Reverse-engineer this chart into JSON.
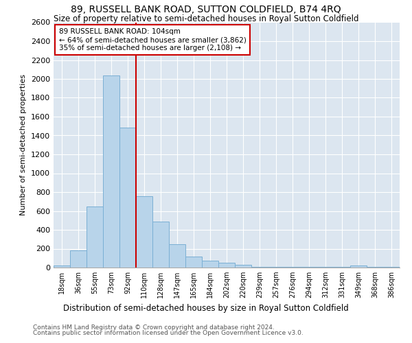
{
  "title": "89, RUSSELL BANK ROAD, SUTTON COLDFIELD, B74 4RQ",
  "subtitle": "Size of property relative to semi-detached houses in Royal Sutton Coldfield",
  "xlabel_bottom": "Distribution of semi-detached houses by size in Royal Sutton Coldfield",
  "ylabel": "Number of semi-detached properties",
  "footnote1": "Contains HM Land Registry data © Crown copyright and database right 2024.",
  "footnote2": "Contains public sector information licensed under the Open Government Licence v3.0.",
  "bar_labels": [
    "18sqm",
    "36sqm",
    "55sqm",
    "73sqm",
    "92sqm",
    "110sqm",
    "128sqm",
    "147sqm",
    "165sqm",
    "184sqm",
    "202sqm",
    "220sqm",
    "239sqm",
    "257sqm",
    "276sqm",
    "294sqm",
    "312sqm",
    "331sqm",
    "349sqm",
    "368sqm",
    "386sqm"
  ],
  "bar_values": [
    20,
    180,
    650,
    2040,
    1480,
    760,
    490,
    245,
    120,
    70,
    50,
    30,
    10,
    10,
    5,
    5,
    5,
    5,
    20,
    5,
    5
  ],
  "bar_color": "#b8d4ea",
  "bar_edge_color": "#7aafd4",
  "property_line_label": "89 RUSSELL BANK ROAD: 104sqm",
  "annotation_smaller": "← 64% of semi-detached houses are smaller (3,862)",
  "annotation_larger": "35% of semi-detached houses are larger (2,108) →",
  "vline_color": "#cc0000",
  "vline_x": 4.5,
  "ylim": [
    0,
    2600
  ],
  "yticks": [
    0,
    200,
    400,
    600,
    800,
    1000,
    1200,
    1400,
    1600,
    1800,
    2000,
    2200,
    2400,
    2600
  ],
  "fig_bg_color": "#ffffff",
  "plot_bg_color": "#dce6f0",
  "annotation_box_color": "#ffffff",
  "annotation_box_edge": "#cc0000",
  "title_fontsize": 10,
  "subtitle_fontsize": 8.5,
  "ylabel_fontsize": 8,
  "xtick_fontsize": 7,
  "ytick_fontsize": 8,
  "footnote_fontsize": 6.5
}
